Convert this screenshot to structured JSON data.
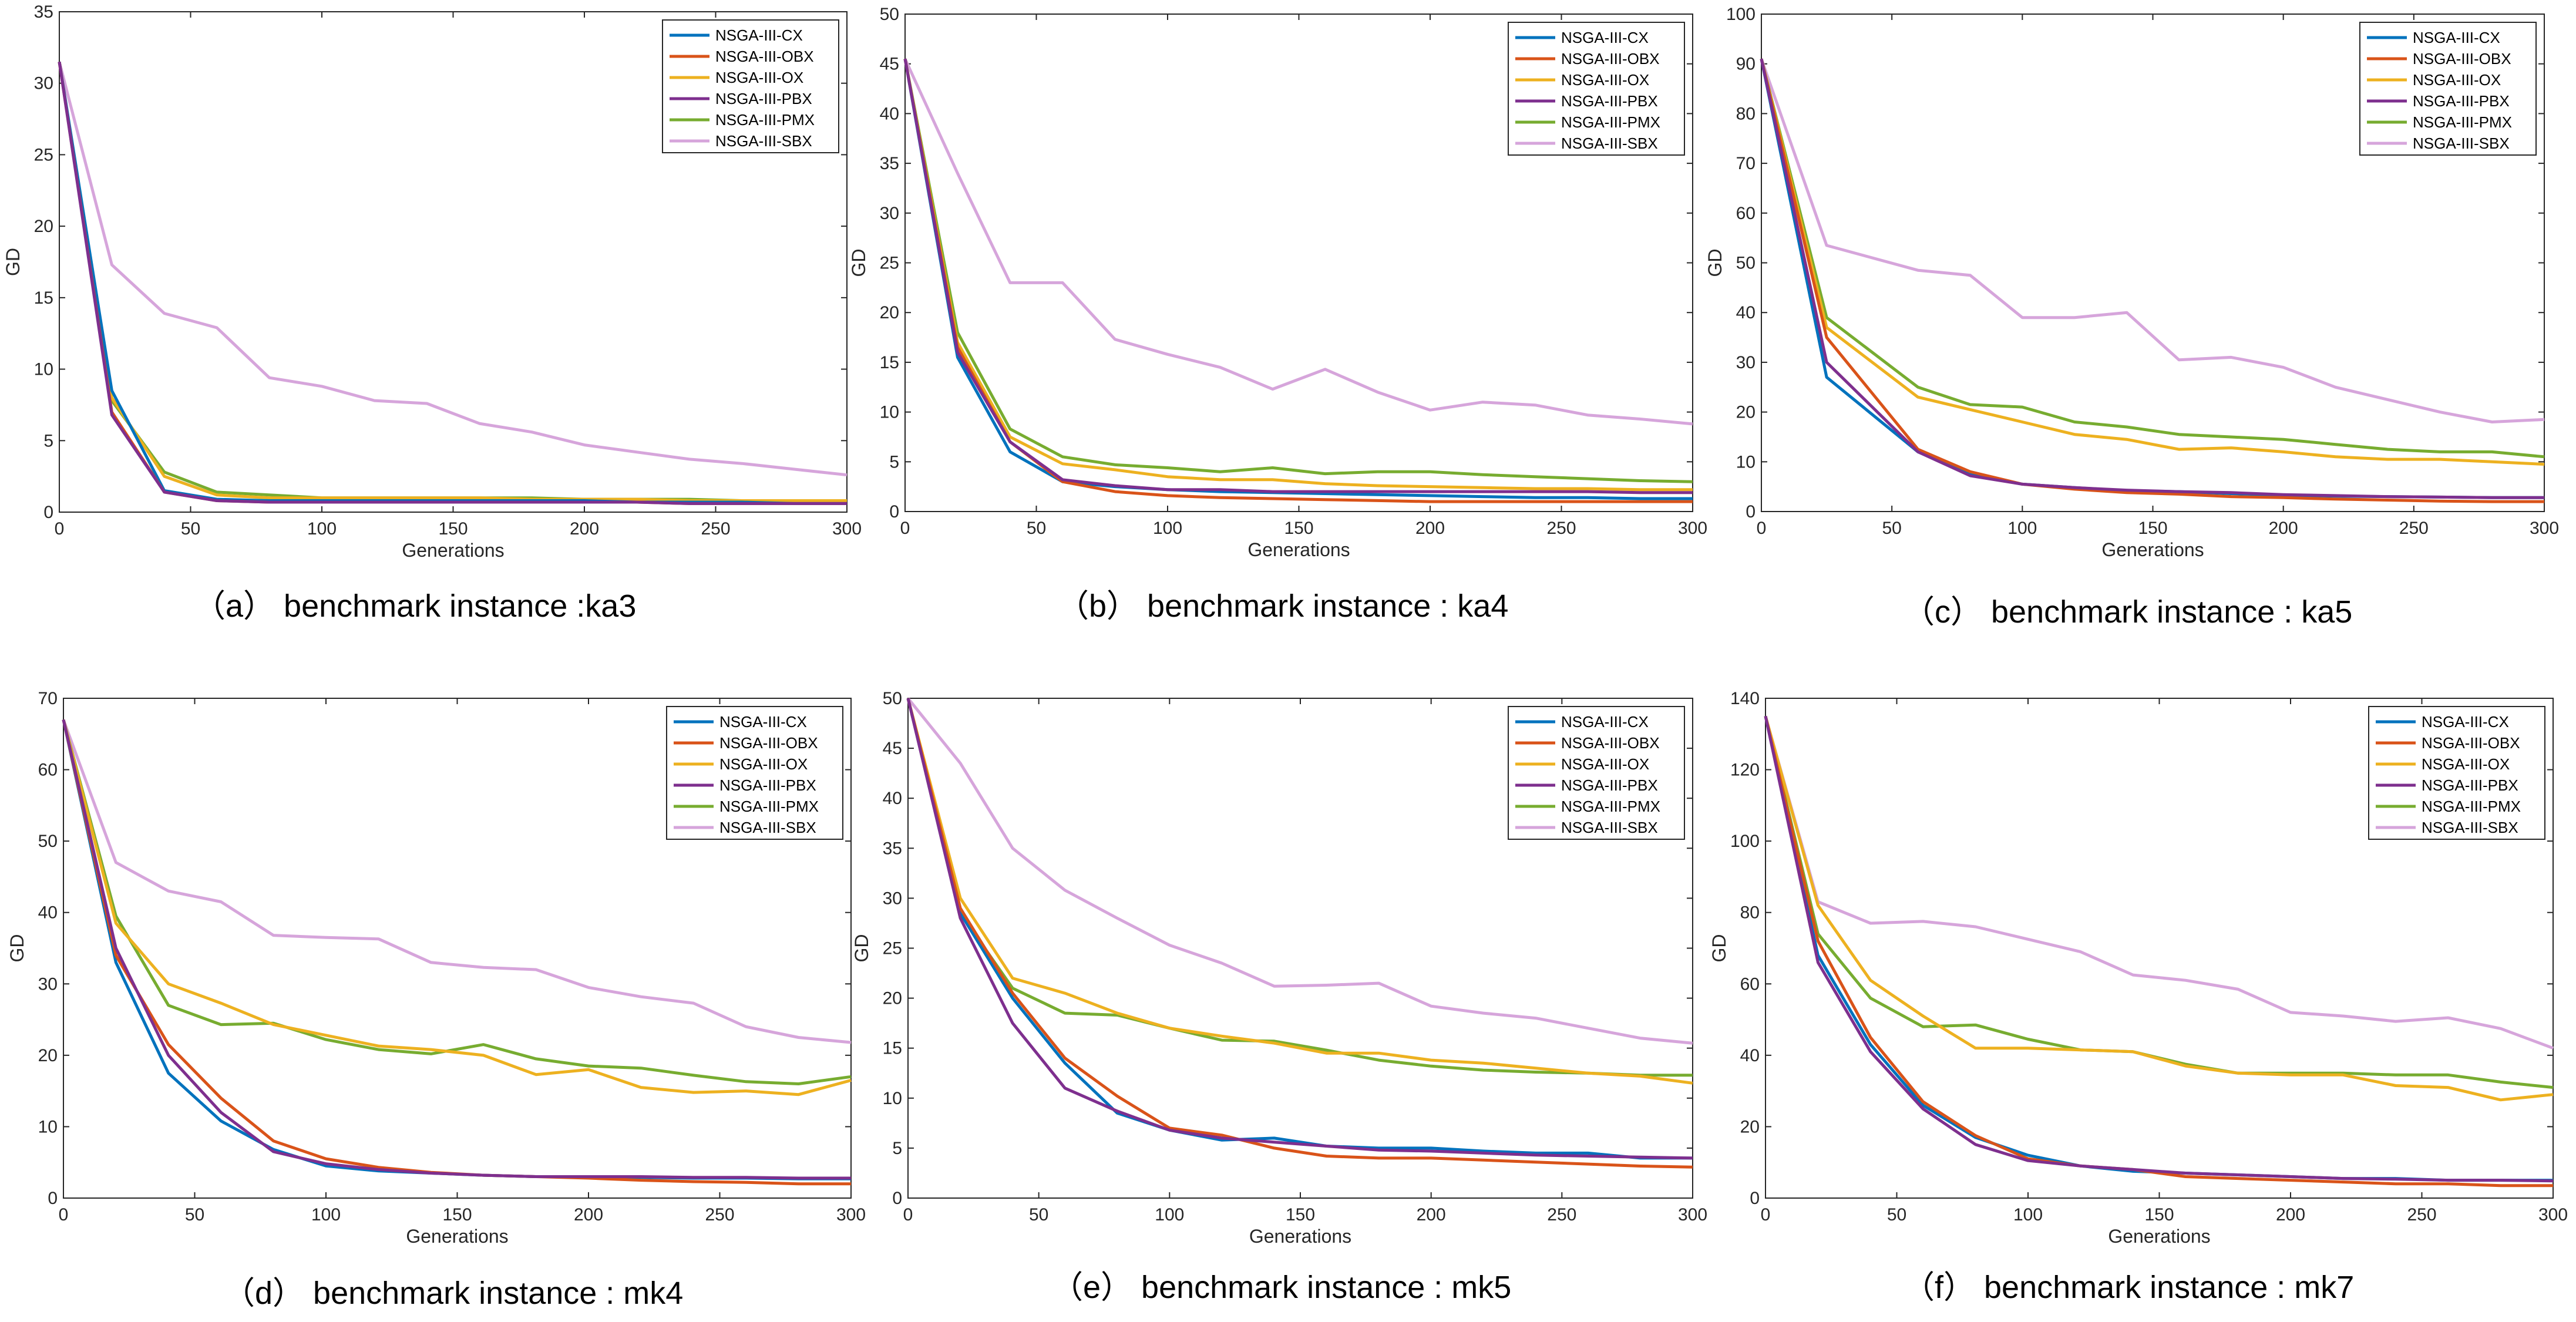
{
  "legend_entries": [
    "NSGA-III-CX",
    "NSGA-III-OBX",
    "NSGA-III-OX",
    "NSGA-III-PBX",
    "NSGA-III-PMX",
    "NSGA-III-SBX"
  ],
  "series_colors": {
    "NSGA-III-CX": "#0072BD",
    "NSGA-III-OBX": "#D95319",
    "NSGA-III-OX": "#EDB120",
    "NSGA-III-PBX": "#7E2F8E",
    "NSGA-III-PMX": "#77AC30",
    "NSGA-III-SBX": "#D6A5DB"
  },
  "chart_data": [
    {
      "type": "line",
      "caption": "（a） benchmark instance :ka3",
      "xlabel": "Generations",
      "ylabel": "GD",
      "xlim": [
        0,
        300
      ],
      "ylim": [
        0,
        35
      ],
      "xticks": [
        0,
        50,
        100,
        150,
        200,
        250,
        300
      ],
      "yticks": [
        0,
        5,
        10,
        15,
        20,
        25,
        30,
        35
      ],
      "x": [
        0,
        20,
        40,
        60,
        80,
        100,
        120,
        140,
        160,
        180,
        200,
        220,
        240,
        260,
        280,
        300
      ],
      "series": [
        {
          "name": "NSGA-III-CX",
          "values": [
            31.5,
            8.5,
            1.5,
            0.9,
            0.8,
            0.8,
            0.8,
            0.8,
            0.8,
            0.8,
            0.8,
            0.7,
            0.7,
            0.7,
            0.6,
            0.6
          ]
        },
        {
          "name": "NSGA-III-OBX",
          "values": [
            31.5,
            7.0,
            1.4,
            0.8,
            0.7,
            0.7,
            0.7,
            0.7,
            0.7,
            0.7,
            0.7,
            0.7,
            0.6,
            0.6,
            0.6,
            0.6
          ]
        },
        {
          "name": "NSGA-III-OX",
          "values": [
            31.5,
            8.0,
            2.5,
            1.2,
            1.0,
            1.0,
            1.0,
            1.0,
            1.0,
            0.9,
            0.9,
            0.9,
            0.8,
            0.8,
            0.8,
            0.8
          ]
        },
        {
          "name": "NSGA-III-PBX",
          "values": [
            31.5,
            6.8,
            1.4,
            0.8,
            0.7,
            0.7,
            0.7,
            0.7,
            0.7,
            0.7,
            0.7,
            0.7,
            0.6,
            0.6,
            0.6,
            0.6
          ]
        },
        {
          "name": "NSGA-III-PMX",
          "values": [
            31.5,
            7.8,
            2.8,
            1.4,
            1.2,
            1.0,
            1.0,
            1.0,
            1.0,
            1.0,
            0.9,
            0.9,
            0.9,
            0.8,
            0.8,
            0.8
          ]
        },
        {
          "name": "NSGA-III-SBX",
          "values": [
            31.5,
            17.3,
            13.9,
            12.9,
            9.4,
            8.8,
            7.8,
            7.6,
            6.2,
            5.6,
            4.7,
            4.2,
            3.7,
            3.4,
            3.0,
            2.6
          ]
        }
      ]
    },
    {
      "type": "line",
      "caption": "（b） benchmark instance : ka4",
      "xlabel": "Generations",
      "ylabel": "GD",
      "xlim": [
        0,
        300
      ],
      "ylim": [
        0,
        50
      ],
      "xticks": [
        0,
        50,
        100,
        150,
        200,
        250,
        300
      ],
      "yticks": [
        0,
        5,
        10,
        15,
        20,
        25,
        30,
        35,
        40,
        45,
        50
      ],
      "x": [
        0,
        20,
        40,
        60,
        80,
        100,
        120,
        140,
        160,
        180,
        200,
        220,
        240,
        260,
        280,
        300
      ],
      "series": [
        {
          "name": "NSGA-III-CX",
          "values": [
            45.5,
            15.5,
            6.0,
            3.0,
            2.5,
            2.2,
            2.0,
            1.9,
            1.8,
            1.7,
            1.6,
            1.5,
            1.4,
            1.4,
            1.3,
            1.3
          ]
        },
        {
          "name": "NSGA-III-OBX",
          "values": [
            45.5,
            16.5,
            7.0,
            3.0,
            2.0,
            1.6,
            1.4,
            1.3,
            1.2,
            1.1,
            1.0,
            1.0,
            1.0,
            1.0,
            1.0,
            1.0
          ]
        },
        {
          "name": "NSGA-III-OX",
          "values": [
            45.5,
            17.0,
            7.5,
            4.8,
            4.2,
            3.5,
            3.2,
            3.2,
            2.8,
            2.6,
            2.5,
            2.4,
            2.3,
            2.3,
            2.2,
            2.2
          ]
        },
        {
          "name": "NSGA-III-PBX",
          "values": [
            45.5,
            16.0,
            7.0,
            3.2,
            2.6,
            2.2,
            2.2,
            2.0,
            2.0,
            2.0,
            2.0,
            2.0,
            2.0,
            2.0,
            1.9,
            1.9
          ]
        },
        {
          "name": "NSGA-III-PMX",
          "values": [
            45.5,
            18.0,
            8.3,
            5.5,
            4.7,
            4.4,
            4.0,
            4.4,
            3.8,
            4.0,
            4.0,
            3.7,
            3.5,
            3.3,
            3.1,
            3.0
          ]
        },
        {
          "name": "NSGA-III-SBX",
          "values": [
            45.5,
            34.0,
            23.0,
            23.0,
            17.3,
            15.8,
            14.5,
            12.3,
            14.3,
            12.0,
            10.2,
            11.0,
            10.7,
            9.7,
            9.3,
            8.8
          ]
        }
      ]
    },
    {
      "type": "line",
      "caption": "（c） benchmark instance : ka5",
      "xlabel": "Generations",
      "ylabel": "GD",
      "xlim": [
        0,
        300
      ],
      "ylim": [
        0,
        100
      ],
      "xticks": [
        0,
        50,
        100,
        150,
        200,
        250,
        300
      ],
      "yticks": [
        0,
        10,
        20,
        30,
        40,
        50,
        60,
        70,
        80,
        90,
        100
      ],
      "x": [
        0,
        25,
        60,
        80,
        100,
        120,
        140,
        160,
        180,
        200,
        220,
        240,
        260,
        280,
        300
      ],
      "series": [
        {
          "name": "NSGA-III-CX",
          "values": [
            91,
            27,
            12,
            7.5,
            5.5,
            4.8,
            4.2,
            4.0,
            3.6,
            3.3,
            3.1,
            3.0,
            2.9,
            2.8,
            2.8
          ]
        },
        {
          "name": "NSGA-III-OBX",
          "values": [
            91,
            35,
            12.5,
            8.0,
            5.5,
            4.5,
            3.8,
            3.5,
            3.0,
            2.8,
            2.5,
            2.3,
            2.1,
            2.0,
            2.0
          ]
        },
        {
          "name": "NSGA-III-OX",
          "values": [
            91,
            37,
            23,
            20.5,
            18,
            15.5,
            14.5,
            12.5,
            12.8,
            12,
            11,
            10.5,
            10.5,
            10,
            9.5
          ]
        },
        {
          "name": "NSGA-III-PBX",
          "values": [
            91,
            30,
            12,
            7.2,
            5.5,
            4.8,
            4.3,
            4.0,
            3.8,
            3.4,
            3.2,
            3.0,
            2.9,
            2.8,
            2.8
          ]
        },
        {
          "name": "NSGA-III-PMX",
          "values": [
            91,
            39,
            25,
            21.5,
            21,
            18,
            17,
            15.5,
            15,
            14.5,
            13.5,
            12.5,
            12,
            12,
            11
          ]
        },
        {
          "name": "NSGA-III-SBX",
          "values": [
            91,
            53.5,
            48.5,
            47.5,
            39,
            39,
            40,
            30.5,
            31,
            29,
            25,
            22.5,
            20,
            18,
            18.5
          ]
        }
      ]
    },
    {
      "type": "line",
      "caption": "（d） benchmark instance : mk4",
      "xlabel": "Generations",
      "ylabel": "GD",
      "xlim": [
        0,
        300
      ],
      "ylim": [
        0,
        70
      ],
      "xticks": [
        0,
        50,
        100,
        150,
        200,
        250,
        300
      ],
      "yticks": [
        0,
        10,
        20,
        30,
        40,
        50,
        60,
        70
      ],
      "x": [
        0,
        20,
        40,
        60,
        80,
        100,
        120,
        140,
        160,
        180,
        200,
        220,
        240,
        260,
        280,
        300
      ],
      "series": [
        {
          "name": "NSGA-III-CX",
          "values": [
            67,
            33,
            17.5,
            10.8,
            6.8,
            4.5,
            3.8,
            3.5,
            3.2,
            3.0,
            3.0,
            2.9,
            2.8,
            2.8,
            2.7,
            2.7
          ]
        },
        {
          "name": "NSGA-III-OBX",
          "values": [
            67,
            34,
            21.5,
            14,
            8,
            5.5,
            4.3,
            3.6,
            3.2,
            3.0,
            2.8,
            2.5,
            2.3,
            2.2,
            2.0,
            2.0
          ]
        },
        {
          "name": "NSGA-III-OX",
          "values": [
            67,
            38.5,
            30,
            27.3,
            24.3,
            22.8,
            21.3,
            20.8,
            20,
            17.3,
            18,
            15.5,
            14.8,
            15,
            14.5,
            16.5
          ]
        },
        {
          "name": "NSGA-III-PBX",
          "values": [
            67,
            35,
            20,
            12,
            6.5,
            4.8,
            4.0,
            3.5,
            3.2,
            3.0,
            3.0,
            3.0,
            2.9,
            2.9,
            2.8,
            2.8
          ]
        },
        {
          "name": "NSGA-III-PMX",
          "values": [
            67,
            39.5,
            27,
            24.3,
            24.5,
            22.2,
            20.8,
            20.2,
            21.5,
            19.5,
            18.5,
            18.2,
            17.2,
            16.3,
            16,
            17
          ]
        },
        {
          "name": "NSGA-III-SBX",
          "values": [
            67,
            47,
            43,
            41.5,
            36.8,
            36.5,
            36.3,
            33,
            32.3,
            32,
            29.5,
            28.2,
            27.3,
            24,
            22.5,
            21.8
          ]
        }
      ]
    },
    {
      "type": "line",
      "caption": "（e） benchmark instance : mk5",
      "xlabel": "Generations",
      "ylabel": "GD",
      "xlim": [
        0,
        300
      ],
      "ylim": [
        0,
        50
      ],
      "xticks": [
        0,
        50,
        100,
        150,
        200,
        250,
        300
      ],
      "yticks": [
        0,
        5,
        10,
        15,
        20,
        25,
        30,
        35,
        40,
        45,
        50
      ],
      "x": [
        0,
        20,
        40,
        60,
        80,
        100,
        120,
        140,
        160,
        180,
        200,
        220,
        240,
        260,
        280,
        300
      ],
      "series": [
        {
          "name": "NSGA-III-CX",
          "values": [
            50,
            28.5,
            20,
            13.5,
            8.5,
            6.8,
            5.8,
            6.0,
            5.2,
            5.0,
            5.0,
            4.7,
            4.5,
            4.5,
            4.0,
            4.0
          ]
        },
        {
          "name": "NSGA-III-OBX",
          "values": [
            50,
            29,
            20.5,
            14,
            10.2,
            7.0,
            6.3,
            5.0,
            4.2,
            4.0,
            4.0,
            3.8,
            3.6,
            3.4,
            3.2,
            3.1
          ]
        },
        {
          "name": "NSGA-III-OX",
          "values": [
            50,
            30,
            22,
            20.5,
            18.5,
            17,
            16.2,
            15.5,
            14.5,
            14.5,
            13.8,
            13.5,
            13,
            12.5,
            12.2,
            11.5
          ]
        },
        {
          "name": "NSGA-III-PBX",
          "values": [
            50,
            28,
            17.5,
            11,
            8.7,
            6.8,
            6.0,
            5.6,
            5.2,
            4.8,
            4.7,
            4.5,
            4.3,
            4.2,
            4.1,
            4.0
          ]
        },
        {
          "name": "NSGA-III-PMX",
          "values": [
            50,
            28.5,
            21,
            18.5,
            18.3,
            17,
            15.8,
            15.7,
            14.8,
            13.8,
            13.2,
            12.8,
            12.6,
            12.5,
            12.3,
            12.3
          ]
        },
        {
          "name": "NSGA-III-SBX",
          "values": [
            50,
            43.5,
            35,
            30.8,
            28,
            25.3,
            23.5,
            21.2,
            21.3,
            21.5,
            19.2,
            18.5,
            18,
            17,
            16,
            15.5
          ]
        }
      ]
    },
    {
      "type": "line",
      "caption": "（f） benchmark instance : mk7",
      "xlabel": "Generations",
      "ylabel": "GD",
      "xlim": [
        0,
        300
      ],
      "ylim": [
        0,
        140
      ],
      "xticks": [
        0,
        50,
        100,
        150,
        200,
        250,
        300
      ],
      "yticks": [
        0,
        20,
        40,
        60,
        80,
        100,
        120,
        140
      ],
      "x": [
        0,
        20,
        40,
        60,
        80,
        100,
        120,
        140,
        160,
        180,
        200,
        220,
        240,
        260,
        280,
        300
      ],
      "series": [
        {
          "name": "NSGA-III-CX",
          "values": [
            135,
            68,
            43,
            26,
            17,
            12,
            9,
            7.5,
            7,
            6.5,
            6,
            5.5,
            5.5,
            5,
            5,
            5
          ]
        },
        {
          "name": "NSGA-III-OBX",
          "values": [
            135,
            72,
            45,
            27,
            17.5,
            11,
            9,
            8,
            6,
            5.5,
            5,
            4.5,
            4,
            4,
            3.5,
            3.5
          ]
        },
        {
          "name": "NSGA-III-OX",
          "values": [
            135,
            82,
            61,
            51,
            42,
            42,
            41.5,
            41,
            37,
            35,
            34.5,
            34.5,
            31.5,
            31,
            27.5,
            29
          ]
        },
        {
          "name": "NSGA-III-PBX",
          "values": [
            135,
            66,
            41,
            25,
            15,
            10.5,
            9,
            8,
            7,
            6.5,
            6,
            5.5,
            5.3,
            5,
            5,
            4.8
          ]
        },
        {
          "name": "NSGA-III-PMX",
          "values": [
            135,
            74,
            56,
            48,
            48.5,
            44.5,
            41.5,
            41,
            37.5,
            35,
            35,
            35,
            34.5,
            34.5,
            32.5,
            31
          ]
        },
        {
          "name": "NSGA-III-SBX",
          "values": [
            135,
            83,
            77,
            77.5,
            76,
            72.5,
            69,
            62.5,
            61,
            58.5,
            52,
            51,
            49.5,
            50.5,
            47.5,
            42
          ]
        }
      ]
    }
  ]
}
